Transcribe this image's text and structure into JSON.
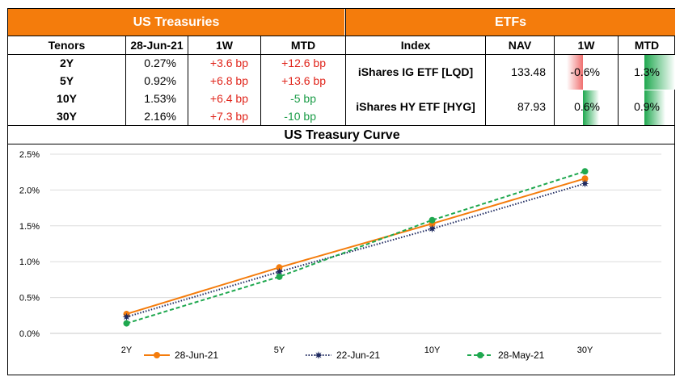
{
  "treasuries": {
    "header": "US Treasuries",
    "columns": [
      "Tenors",
      "28-Jun-21",
      "1W",
      "MTD"
    ],
    "rows": [
      {
        "tenor": "2Y",
        "yield": "0.27%",
        "w1": "+3.6 bp",
        "mtd": "+12.6 bp"
      },
      {
        "tenor": "5Y",
        "yield": "0.92%",
        "w1": "+6.8 bp",
        "mtd": "+13.6 bp"
      },
      {
        "tenor": "10Y",
        "yield": "1.53%",
        "w1": "+6.4 bp",
        "mtd": "-5 bp"
      },
      {
        "tenor": "30Y",
        "yield": "2.16%",
        "w1": "+7.3 bp",
        "mtd": "-10 bp"
      }
    ]
  },
  "etfs": {
    "header": "ETFs",
    "columns": [
      "Index",
      "NAV",
      "1W",
      "MTD"
    ],
    "rows": [
      {
        "index": "iShares IG ETF [LQD]",
        "nav": "133.48",
        "w1": "-0.6%",
        "mtd": "1.3%",
        "w1_value": -0.6,
        "mtd_value": 1.3
      },
      {
        "index": "iShares HY ETF [HYG]",
        "nav": "87.93",
        "w1": "0.6%",
        "mtd": "0.9%",
        "w1_value": 0.6,
        "mtd_value": 0.9
      }
    ]
  },
  "colors": {
    "header_bg": "#f47c0c",
    "positive_text": "#e0251b",
    "negative_text": "#1a9c47",
    "bar_positive": "#1fa84f",
    "bar_negative": "#f07070"
  },
  "chart_data": {
    "type": "line",
    "title": "US Treasury Curve",
    "categories": [
      "2Y",
      "5Y",
      "10Y",
      "30Y"
    ],
    "ylim": [
      0,
      2.5
    ],
    "yticks": [
      "0.0%",
      "0.5%",
      "1.0%",
      "1.5%",
      "2.0%",
      "2.5%"
    ],
    "grid": true,
    "legend_position": "bottom",
    "series": [
      {
        "name": "28-Jun-21",
        "values": [
          0.27,
          0.92,
          1.53,
          2.16
        ],
        "color": "#f47c0c",
        "style": "solid",
        "marker": "circle"
      },
      {
        "name": "22-Jun-21",
        "values": [
          0.23,
          0.86,
          1.46,
          2.09
        ],
        "color": "#1f2a60",
        "style": "dotted",
        "marker": "star"
      },
      {
        "name": "28-May-21",
        "values": [
          0.14,
          0.79,
          1.58,
          2.26
        ],
        "color": "#1fa84f",
        "style": "dashed",
        "marker": "circle"
      }
    ]
  }
}
